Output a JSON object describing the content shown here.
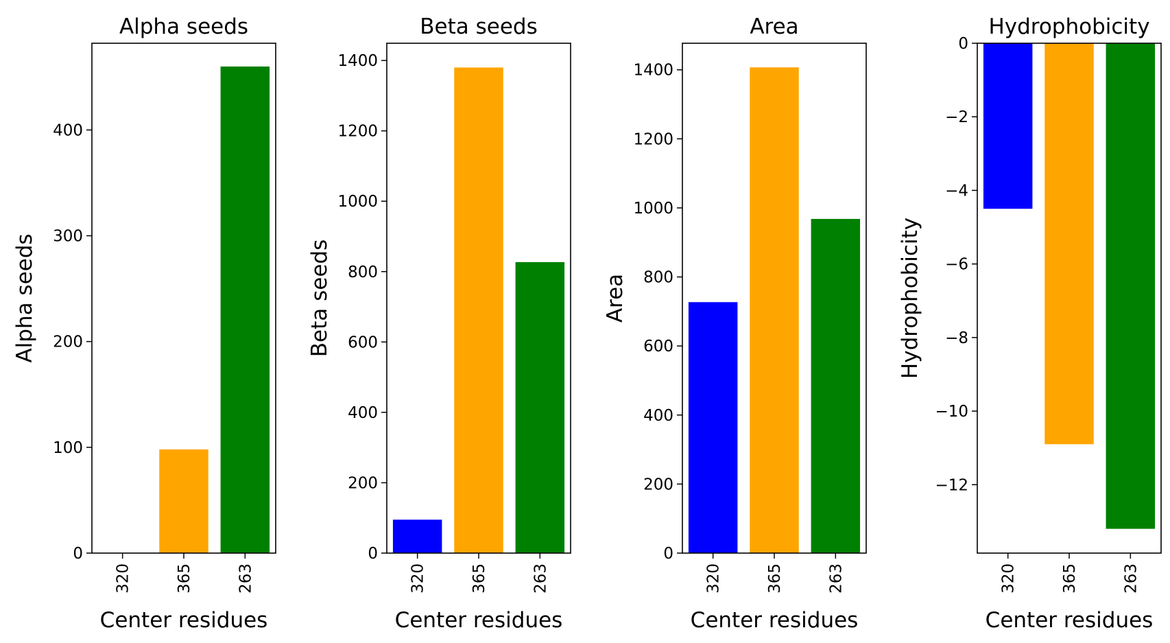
{
  "chart_data": [
    {
      "type": "bar",
      "title": "Alpha seeds",
      "xlabel": "Center residues",
      "ylabel": "Alpha seeds",
      "categories": [
        "320",
        "365",
        "263"
      ],
      "values": [
        0,
        98,
        460
      ],
      "colors": [
        "#0000ff",
        "#ffa500",
        "#008000"
      ],
      "ylim": [
        0,
        482
      ],
      "yticks": [
        0,
        100,
        200,
        300,
        400
      ],
      "ytick_labels": [
        "0",
        "100",
        "200",
        "300",
        "400"
      ]
    },
    {
      "type": "bar",
      "title": "Beta seeds",
      "xlabel": "Center residues",
      "ylabel": "Beta seeds",
      "categories": [
        "320",
        "365",
        "263"
      ],
      "values": [
        95,
        1380,
        827
      ],
      "colors": [
        "#0000ff",
        "#ffa500",
        "#008000"
      ],
      "ylim": [
        0,
        1449
      ],
      "yticks": [
        0,
        200,
        400,
        600,
        800,
        1000,
        1200,
        1400
      ],
      "ytick_labels": [
        "0",
        "200",
        "400",
        "600",
        "800",
        "1000",
        "1200",
        "1400"
      ]
    },
    {
      "type": "bar",
      "title": "Area",
      "xlabel": "Center residues",
      "ylabel": "Area",
      "categories": [
        "320",
        "365",
        "263"
      ],
      "values": [
        727,
        1407,
        968
      ],
      "colors": [
        "#0000ff",
        "#ffa500",
        "#008000"
      ],
      "ylim": [
        0,
        1477
      ],
      "yticks": [
        0,
        200,
        400,
        600,
        800,
        1000,
        1200,
        1400
      ],
      "ytick_labels": [
        "0",
        "200",
        "400",
        "600",
        "800",
        "1000",
        "1200",
        "1400"
      ]
    },
    {
      "type": "bar",
      "title": "Hydrophobicity",
      "xlabel": "Center residues",
      "ylabel": "Hydrophobicity",
      "categories": [
        "320",
        "365",
        "263"
      ],
      "values": [
        -4.5,
        -10.9,
        -13.2
      ],
      "colors": [
        "#0000ff",
        "#ffa500",
        "#008000"
      ],
      "ylim": [
        -13.86,
        0
      ],
      "yticks": [
        0,
        -2,
        -4,
        -6,
        -8,
        -10,
        -12
      ],
      "ytick_labels": [
        "0",
        "−2",
        "−4",
        "−6",
        "−8",
        "−10",
        "−12"
      ]
    }
  ]
}
